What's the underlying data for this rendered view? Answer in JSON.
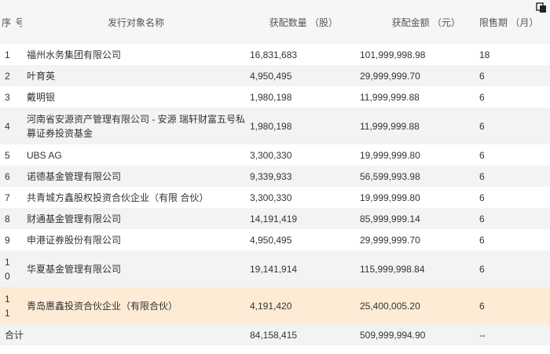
{
  "header": {
    "no": "序 号",
    "name": "发行对象名称",
    "qty": "获配数量 （股）",
    "amount": "获配金额 （元）",
    "lockup": "限售期 （月）"
  },
  "rows": [
    {
      "no": "1",
      "name": "福州水务集团有限公司",
      "qty": "16,831,683",
      "amount": "101,999,998.98",
      "lockup": "18"
    },
    {
      "no": "2",
      "name": "叶育英",
      "qty": "4,950,495",
      "amount": "29,999,999.70",
      "lockup": "6"
    },
    {
      "no": "3",
      "name": "戴明银",
      "qty": "1,980,198",
      "amount": "11,999,999.88",
      "lockup": "6"
    },
    {
      "no": "4",
      "name": "河南省安源资产管理有限公司 - 安源 瑞轩财富五号私募证券投资基金",
      "qty": "1,980,198",
      "amount": "11,999,999.88",
      "lockup": "6"
    },
    {
      "no": "5",
      "name": "UBS AG",
      "qty": "3,300,330",
      "amount": "19,999,999.80",
      "lockup": "6"
    },
    {
      "no": "6",
      "name": "诺德基金管理有限公司",
      "qty": "9,339,933",
      "amount": "56,599,993.98",
      "lockup": "6"
    },
    {
      "no": "7",
      "name": "共青城方鑫股权投资合伙企业（有限 合伙）",
      "qty": "3,300,330",
      "amount": "19,999,999.80",
      "lockup": "6"
    },
    {
      "no": "8",
      "name": "财通基金管理有限公司",
      "qty": "14,191,419",
      "amount": "85,999,999.14",
      "lockup": "6"
    },
    {
      "no": "9",
      "name": "申港证券股份有限公司",
      "qty": "4,950,495",
      "amount": "29,999,999.70",
      "lockup": "6"
    },
    {
      "no": "10",
      "name": "华夏基金管理有限公司",
      "qty": "19,141,914",
      "amount": "115,999,998.84",
      "lockup": "6"
    },
    {
      "no": "11",
      "name": "青岛惠鑫投资合伙企业（有限合伙）",
      "qty": "4,191,420",
      "amount": "25,400,005.20",
      "lockup": "6"
    }
  ],
  "total": {
    "label": "合计",
    "qty": "84,158,415",
    "amount": "509,999,994.90",
    "lockup": "--"
  },
  "icons": {
    "corner": "copy-icon"
  },
  "colors": {
    "highlight_row": "#fdebd5",
    "alt_row": "#f3f3f3",
    "header_bg": "#f6f6f6"
  }
}
